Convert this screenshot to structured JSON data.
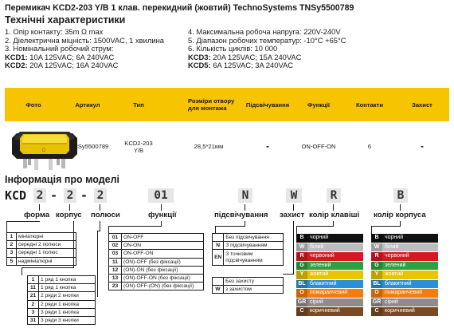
{
  "title": "Перемикач KCD2-203 Y/B 1 клав. перекидний (жовтий) TechnoSystems TNSy5500789",
  "specs_heading": "Технічні характеристики",
  "specs_left": [
    "1. Опір контакту: 35m Ω  max",
    "2. Діелектрична міцність:  1500VAC, 1 хвилина",
    "3. Номінальний робочий струм:"
  ],
  "specs_left_kcd1_label": "KCD1:",
  "specs_left_kcd1_value": " 10A 125VAC; 6A 240VAC",
  "specs_left_kcd2_label": "KCD2:",
  "specs_left_kcd2_value": " 20A 125VAC; 16A 240VAC",
  "specs_right": [
    "4. Максимальна робоча напруга: 220V-240V",
    "5. Діапазон робочих температур: -10°C +65°C",
    "6. Кількість циклів: 10 000"
  ],
  "specs_right_kcd3_label": "KCD3:",
  "specs_right_kcd3_value": " 20A 125VAC; 15A 240VAC",
  "specs_right_kcd5_label": "KCD5:",
  "specs_right_kcd5_value": " 6A 125VAC; 3A 240VAC",
  "table": {
    "headers": [
      "Фото",
      "Артикул",
      "Тип",
      "Розміри отвору для монтажа",
      "Підсвічування",
      "Функції",
      "Контакти",
      "Захист"
    ],
    "row": {
      "article": "TNSy5500789",
      "type_line1": "KCD2-203",
      "type_line2": "Y/B",
      "size": "28,5*21мм",
      "backlight": "-",
      "function": "ON-OFF-ON",
      "contacts": "6",
      "protection": "-"
    },
    "photo_icon": "yellow-rocker-switch-photo"
  },
  "model_heading": "Інформація про моделі",
  "model_code": {
    "prefix": "KCD",
    "form": "2",
    "sep1": "-",
    "body": "2",
    "sep2": "-",
    "poles": "2",
    "function": "01",
    "backlight": "N",
    "protection": "W",
    "key_color": "R",
    "body_color": "B"
  },
  "labels": {
    "form": "форма",
    "body": "корпус",
    "poles": "полюси",
    "function": "функції",
    "backlight": "підсвічування",
    "protection": "захист",
    "key_color": "колір клавіші",
    "body_color": "колір корпуса"
  },
  "form_options": [
    {
      "k": "1",
      "v": "мініатюрні"
    },
    {
      "k": "2",
      "v": "середні 2 полюси"
    },
    {
      "k": "3",
      "v": "середні 1 полюс"
    },
    {
      "k": "5",
      "v": "надмініатюрні"
    }
  ],
  "function_options": [
    {
      "k": "01",
      "v": "ON-OFF"
    },
    {
      "k": "02",
      "v": "ON-ON"
    },
    {
      "k": "03",
      "v": "ON-OFF-ON"
    },
    {
      "k": "11",
      "v": "(ON)-OFF (без фіксації)"
    },
    {
      "k": "12",
      "v": "(ON)-ON (без фіксації)"
    },
    {
      "k": "13",
      "v": "(ON)-OFF-ON (без фіксації)"
    },
    {
      "k": "23",
      "v": "(ON)-OFF-(ON) (без фіксації)"
    }
  ],
  "backlight_options": [
    {
      "k": "",
      "v": "Без підсвічування"
    },
    {
      "k": "N",
      "v": "З підсвічуванням"
    },
    {
      "k": "EN",
      "v": "З точковим підсвічуванням"
    }
  ],
  "protection_options": [
    {
      "k": "",
      "v": "Без захисту"
    },
    {
      "k": "W",
      "v": "з захистом"
    }
  ],
  "poles_options": [
    {
      "k": "1",
      "v": "1 ряд 1 кнопка"
    },
    {
      "k": "11",
      "v": "1 ряд 1 кнопка"
    },
    {
      "k": "21",
      "v": "2 ряди 2 кнопки"
    },
    {
      "k": "2",
      "v": "2 ряди 1 кнопка"
    },
    {
      "k": "3",
      "v": "3 ряди 1 кнопка"
    },
    {
      "k": "31",
      "v": "3 ряди 3 кнопки"
    }
  ],
  "colors": [
    {
      "k": "B",
      "v": "чорний",
      "hex": "#111111"
    },
    {
      "k": "W",
      "v": "білий",
      "hex": "#bdbdbd"
    },
    {
      "k": "R",
      "v": "червоний",
      "hex": "#d7191f"
    },
    {
      "k": "G",
      "v": "зелений",
      "hex": "#2ea043"
    },
    {
      "k": "Y",
      "v": "жовтий",
      "hex": "#e9c400"
    },
    {
      "k": "BL",
      "v": "блакитний",
      "hex": "#2a8fd6"
    },
    {
      "k": "O",
      "v": "помаранчевий",
      "hex": "#ef7d10"
    },
    {
      "k": "GR",
      "v": "сірий",
      "hex": "#8c8c8c"
    },
    {
      "k": "C",
      "v": "коричневий",
      "hex": "#7a4a22"
    }
  ]
}
